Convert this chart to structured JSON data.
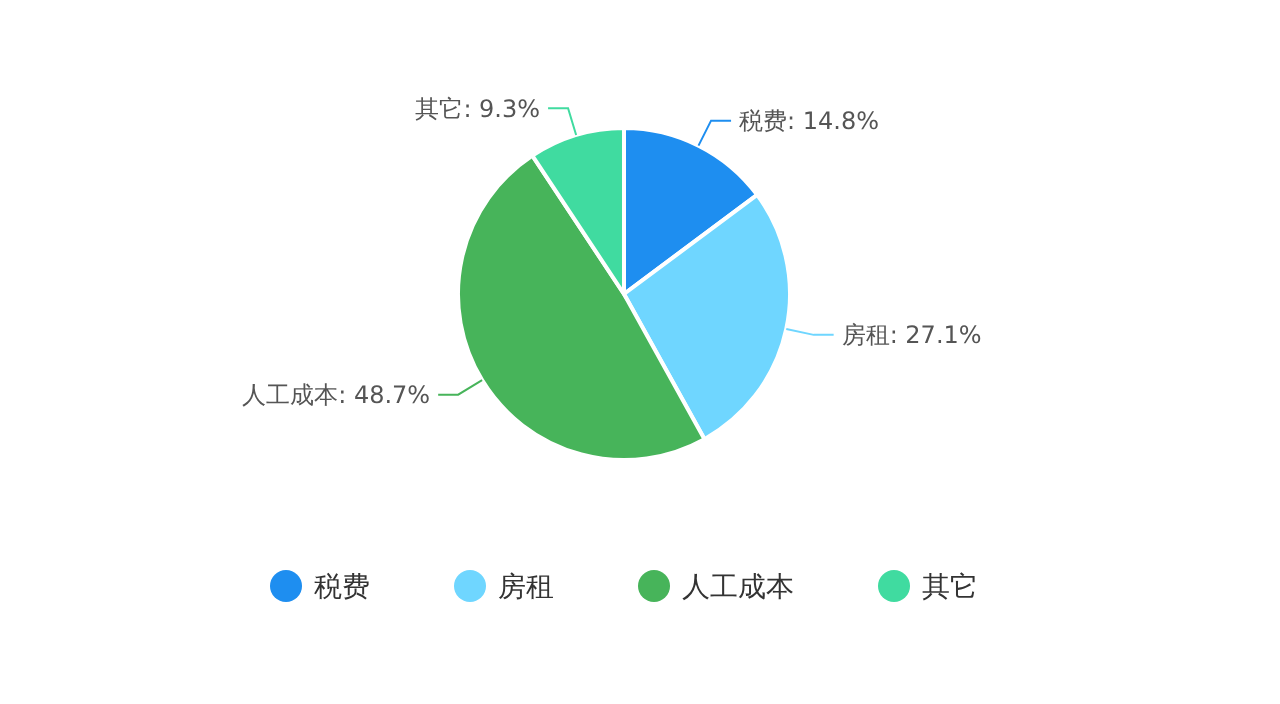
{
  "chart_data": {
    "type": "pie",
    "categories": [
      "税费",
      "房租",
      "人工成本",
      "其它"
    ],
    "values": [
      14.8,
      27.1,
      48.7,
      9.3
    ],
    "colors": [
      "#1e8ef0",
      "#6fd6ff",
      "#47b45a",
      "#40dba0"
    ],
    "value_labels": [
      "税费: 14.8%",
      "房租: 27.1%",
      "人工成本: 48.7%",
      "其它: 9.3%"
    ],
    "legend": "bottom"
  }
}
